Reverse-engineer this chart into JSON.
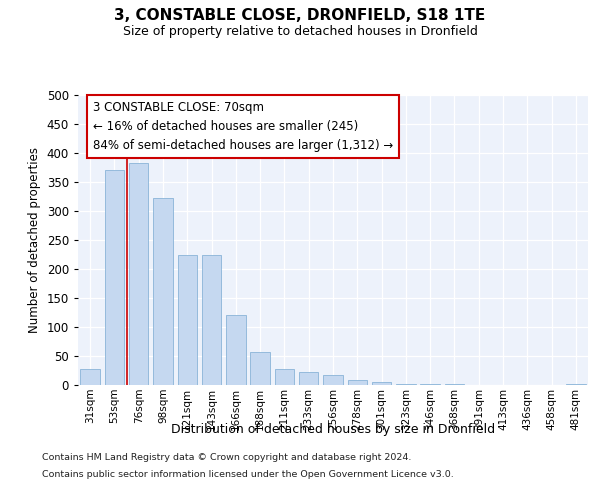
{
  "title": "3, CONSTABLE CLOSE, DRONFIELD, S18 1TE",
  "subtitle": "Size of property relative to detached houses in Dronfield",
  "xlabel": "Distribution of detached houses by size in Dronfield",
  "ylabel": "Number of detached properties",
  "bar_color": "#c5d8f0",
  "bar_edge_color": "#8ab4d8",
  "categories": [
    "31sqm",
    "53sqm",
    "76sqm",
    "98sqm",
    "121sqm",
    "143sqm",
    "166sqm",
    "188sqm",
    "211sqm",
    "233sqm",
    "256sqm",
    "278sqm",
    "301sqm",
    "323sqm",
    "346sqm",
    "368sqm",
    "391sqm",
    "413sqm",
    "436sqm",
    "458sqm",
    "481sqm"
  ],
  "values": [
    28,
    370,
    383,
    323,
    225,
    225,
    120,
    57,
    28,
    22,
    18,
    8,
    5,
    2,
    1,
    1,
    0,
    0,
    0,
    0,
    2
  ],
  "ylim": [
    0,
    500
  ],
  "yticks": [
    0,
    50,
    100,
    150,
    200,
    250,
    300,
    350,
    400,
    450,
    500
  ],
  "vline_color": "#cc0000",
  "vline_pos": 1.5,
  "annotation_text": "3 CONSTABLE CLOSE: 70sqm\n← 16% of detached houses are smaller (245)\n84% of semi-detached houses are larger (1,312) →",
  "footer_line1": "Contains HM Land Registry data © Crown copyright and database right 2024.",
  "footer_line2": "Contains public sector information licensed under the Open Government Licence v3.0.",
  "background_color": "#ffffff",
  "plot_bg_color": "#edf2fb"
}
